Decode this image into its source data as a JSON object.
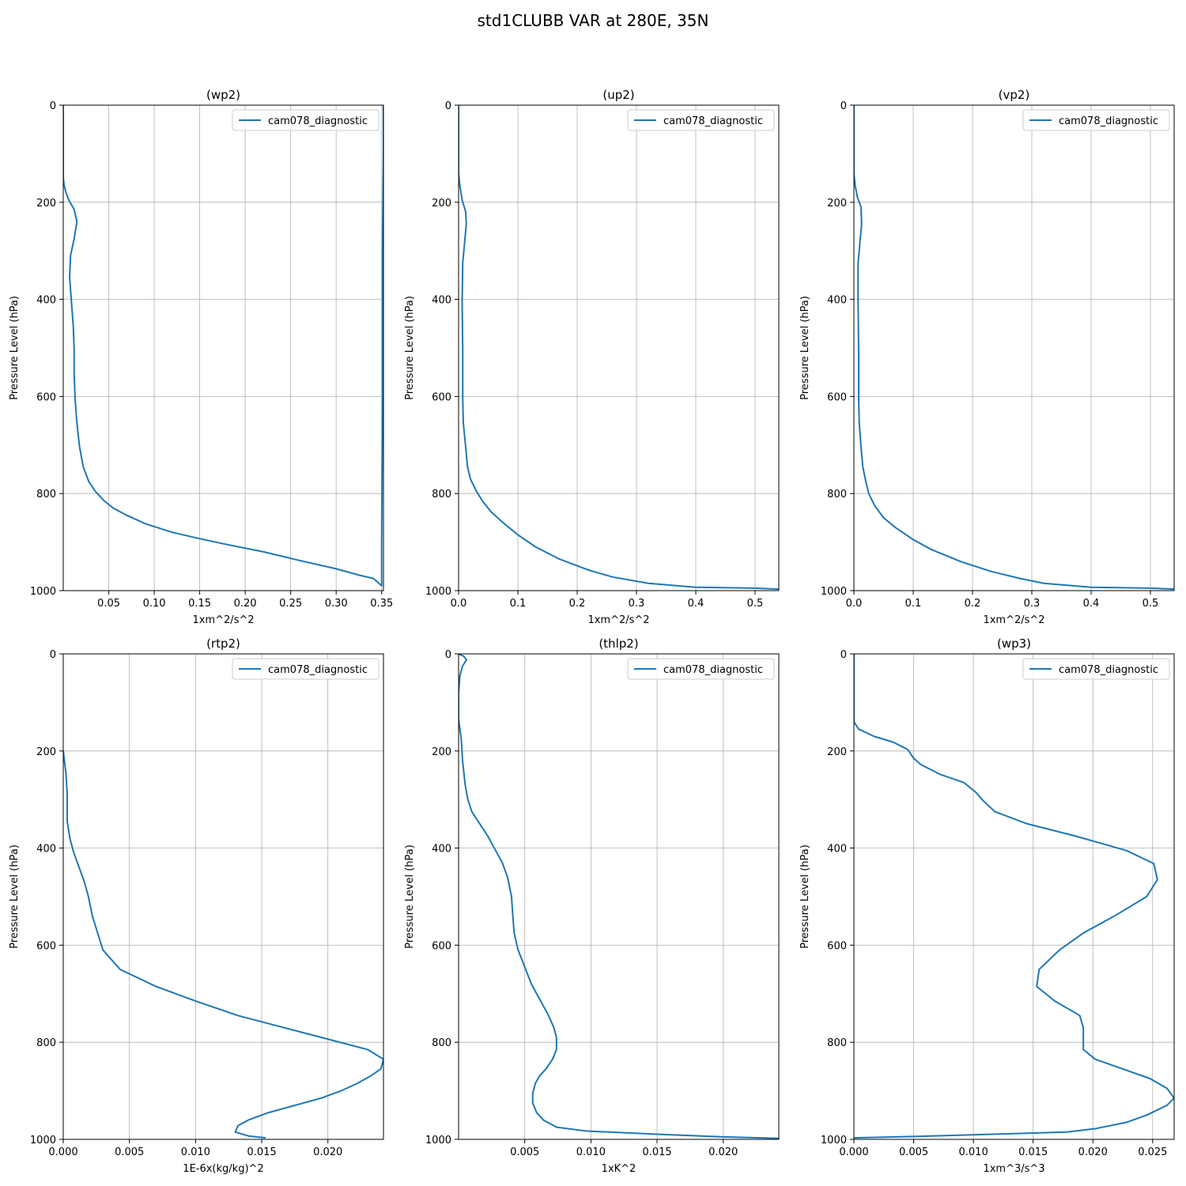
{
  "figure": {
    "suptitle": "std1CLUBB VAR at 280E, 35N"
  },
  "chart_data": [
    {
      "type": "line",
      "title": "(wp2)",
      "xlabel": "1xm^2/s^2",
      "ylabel": "Pressure Level (hPa)",
      "xlim": [
        0,
        0.352
      ],
      "ylim": [
        1000,
        0
      ],
      "xticks": [
        0.05,
        0.1,
        0.15,
        0.2,
        0.25,
        0.3,
        0.35
      ],
      "xtick_labels": [
        "0.05",
        "0.10",
        "0.15",
        "0.20",
        "0.25",
        "0.30",
        "0.35"
      ],
      "yticks": [
        0,
        200,
        400,
        600,
        800,
        1000
      ],
      "ytick_labels": [
        "0",
        "200",
        "400",
        "600",
        "800",
        "1000"
      ],
      "grid": true,
      "legend": "top-right",
      "series": [
        {
          "name": "cam078_diagnostic",
          "color": "#1f77b4",
          "points": [
            [
              0.352,
              0
            ],
            [
              0.352,
              100
            ],
            [
              0.351,
              300
            ],
            [
              0.351,
              600
            ],
            [
              0.35,
              900
            ],
            [
              0.35,
              990
            ],
            [
              0.341,
              975
            ],
            [
              0.325,
              968
            ],
            [
              0.3,
              955
            ],
            [
              0.26,
              938
            ],
            [
              0.22,
              920
            ],
            [
              0.18,
              905
            ],
            [
              0.15,
              893
            ],
            [
              0.12,
              880
            ],
            [
              0.09,
              862
            ],
            [
              0.07,
              845
            ],
            [
              0.055,
              830
            ],
            [
              0.045,
              815
            ],
            [
              0.035,
              795
            ],
            [
              0.028,
              775
            ],
            [
              0.022,
              745
            ],
            [
              0.018,
              705
            ],
            [
              0.015,
              655
            ],
            [
              0.013,
              605
            ],
            [
              0.012,
              555
            ],
            [
              0.012,
              505
            ],
            [
              0.011,
              455
            ],
            [
              0.009,
              405
            ],
            [
              0.007,
              355
            ],
            [
              0.008,
              310
            ],
            [
              0.012,
              275
            ],
            [
              0.015,
              240
            ],
            [
              0.012,
              215
            ],
            [
              0.006,
              195
            ],
            [
              0.003,
              180
            ],
            [
              0.001,
              165
            ],
            [
              0,
              150
            ],
            [
              0,
              0
            ]
          ]
        }
      ]
    },
    {
      "type": "line",
      "title": "(up2)",
      "xlabel": "1xm^2/s^2",
      "ylabel": "Pressure Level (hPa)",
      "xlim": [
        0,
        0.54
      ],
      "ylim": [
        1000,
        0
      ],
      "xticks": [
        0.0,
        0.1,
        0.2,
        0.3,
        0.4,
        0.5
      ],
      "xtick_labels": [
        "0.0",
        "0.1",
        "0.2",
        "0.3",
        "0.4",
        "0.5"
      ],
      "yticks": [
        0,
        200,
        400,
        600,
        800,
        1000
      ],
      "ytick_labels": [
        "0",
        "200",
        "400",
        "600",
        "800",
        "1000"
      ],
      "grid": true,
      "legend": "top-right",
      "series": [
        {
          "name": "cam078_diagnostic",
          "color": "#1f77b4",
          "points": [
            [
              0,
              0
            ],
            [
              0,
              140
            ],
            [
              0.002,
              165
            ],
            [
              0.006,
              195
            ],
            [
              0.012,
              220
            ],
            [
              0.013,
              245
            ],
            [
              0.01,
              285
            ],
            [
              0.007,
              325
            ],
            [
              0.006,
              405
            ],
            [
              0.007,
              505
            ],
            [
              0.007,
              605
            ],
            [
              0.008,
              655
            ],
            [
              0.012,
              705
            ],
            [
              0.015,
              745
            ],
            [
              0.02,
              770
            ],
            [
              0.03,
              795
            ],
            [
              0.04,
              815
            ],
            [
              0.055,
              838
            ],
            [
              0.075,
              860
            ],
            [
              0.1,
              885
            ],
            [
              0.13,
              910
            ],
            [
              0.17,
              935
            ],
            [
              0.22,
              958
            ],
            [
              0.26,
              972
            ],
            [
              0.32,
              985
            ],
            [
              0.4,
              993
            ],
            [
              0.5,
              995
            ],
            [
              0.54,
              997
            ]
          ]
        }
      ]
    },
    {
      "type": "line",
      "title": "(vp2)",
      "xlabel": "1xm^2/s^2",
      "ylabel": "Pressure Level (hPa)",
      "xlim": [
        0,
        0.54
      ],
      "ylim": [
        1000,
        0
      ],
      "xticks": [
        0.0,
        0.1,
        0.2,
        0.3,
        0.4,
        0.5
      ],
      "xtick_labels": [
        "0.0",
        "0.1",
        "0.2",
        "0.3",
        "0.4",
        "0.5"
      ],
      "yticks": [
        0,
        200,
        400,
        600,
        800,
        1000
      ],
      "ytick_labels": [
        "0",
        "200",
        "400",
        "600",
        "800",
        "1000"
      ],
      "grid": true,
      "legend": "top-right",
      "series": [
        {
          "name": "cam078_diagnostic",
          "color": "#1f77b4",
          "points": [
            [
              0,
              0
            ],
            [
              0,
              140
            ],
            [
              0.002,
              165
            ],
            [
              0.006,
              190
            ],
            [
              0.012,
              210
            ],
            [
              0.013,
              245
            ],
            [
              0.01,
              285
            ],
            [
              0.007,
              325
            ],
            [
              0.007,
              405
            ],
            [
              0.008,
              505
            ],
            [
              0.008,
              605
            ],
            [
              0.009,
              655
            ],
            [
              0.012,
              705
            ],
            [
              0.015,
              745
            ],
            [
              0.02,
              775
            ],
            [
              0.025,
              800
            ],
            [
              0.035,
              825
            ],
            [
              0.05,
              850
            ],
            [
              0.07,
              870
            ],
            [
              0.1,
              895
            ],
            [
              0.13,
              915
            ],
            [
              0.18,
              940
            ],
            [
              0.23,
              960
            ],
            [
              0.28,
              975
            ],
            [
              0.32,
              985
            ],
            [
              0.4,
              993
            ],
            [
              0.5,
              995
            ],
            [
              0.54,
              997
            ]
          ]
        }
      ]
    },
    {
      "type": "line",
      "title": "(rtp2)",
      "xlabel": "1E-6x(kg/kg)^2",
      "ylabel": "Pressure Level (hPa)",
      "xlim": [
        0,
        0.0242
      ],
      "ylim": [
        1000,
        0
      ],
      "xticks": [
        0.0,
        0.005,
        0.01,
        0.015,
        0.02
      ],
      "xtick_labels": [
        "0.000",
        "0.005",
        "0.010",
        "0.015",
        "0.020"
      ],
      "yticks": [
        0,
        200,
        400,
        600,
        800,
        1000
      ],
      "ytick_labels": [
        "0",
        "200",
        "400",
        "600",
        "800",
        "1000"
      ],
      "grid": true,
      "legend": "top-right",
      "series": [
        {
          "name": "cam078_diagnostic",
          "color": "#1f77b4",
          "points": [
            [
              0,
              200
            ],
            [
              0.0002,
              245
            ],
            [
              0.0003,
              290
            ],
            [
              0.0003,
              345
            ],
            [
              0.0005,
              380
            ],
            [
              0.0008,
              410
            ],
            [
              0.0012,
              440
            ],
            [
              0.0016,
              470
            ],
            [
              0.0019,
              500
            ],
            [
              0.0022,
              540
            ],
            [
              0.0026,
              575
            ],
            [
              0.003,
              610
            ],
            [
              0.0043,
              650
            ],
            [
              0.007,
              685
            ],
            [
              0.01,
              715
            ],
            [
              0.0132,
              745
            ],
            [
              0.0167,
              770
            ],
            [
              0.0202,
              795
            ],
            [
              0.023,
              815
            ],
            [
              0.0242,
              835
            ],
            [
              0.024,
              855
            ],
            [
              0.0232,
              870
            ],
            [
              0.0222,
              885
            ],
            [
              0.021,
              900
            ],
            [
              0.0195,
              915
            ],
            [
              0.0175,
              930
            ],
            [
              0.0155,
              945
            ],
            [
              0.014,
              960
            ],
            [
              0.0132,
              972
            ],
            [
              0.013,
              985
            ],
            [
              0.014,
              993
            ],
            [
              0.0153,
              997
            ]
          ]
        }
      ]
    },
    {
      "type": "line",
      "title": "(thlp2)",
      "xlabel": "1xK^2",
      "ylabel": "Pressure Level (hPa)",
      "xlim": [
        0,
        0.0242
      ],
      "ylim": [
        1000,
        0
      ],
      "xticks": [
        0.005,
        0.01,
        0.015,
        0.02
      ],
      "xtick_labels": [
        "0.005",
        "0.010",
        "0.015",
        "0.020"
      ],
      "yticks": [
        0,
        200,
        400,
        600,
        800,
        1000
      ],
      "ytick_labels": [
        "0",
        "200",
        "400",
        "600",
        "800",
        "1000"
      ],
      "grid": true,
      "legend": "top-right",
      "series": [
        {
          "name": "cam078_diagnostic",
          "color": "#1f77b4",
          "points": [
            [
              0,
              0
            ],
            [
              0.0004,
              5
            ],
            [
              0.0006,
              12
            ],
            [
              0.0003,
              25
            ],
            [
              0.0001,
              45
            ],
            [
              0,
              80
            ],
            [
              0,
              135
            ],
            [
              0.0002,
              175
            ],
            [
              0.0003,
              220
            ],
            [
              0.0005,
              270
            ],
            [
              0.0007,
              300
            ],
            [
              0.001,
              325
            ],
            [
              0.0016,
              350
            ],
            [
              0.0022,
              375
            ],
            [
              0.0028,
              405
            ],
            [
              0.0033,
              430
            ],
            [
              0.0037,
              460
            ],
            [
              0.004,
              500
            ],
            [
              0.0041,
              540
            ],
            [
              0.0042,
              575
            ],
            [
              0.0045,
              610
            ],
            [
              0.005,
              645
            ],
            [
              0.0055,
              680
            ],
            [
              0.0062,
              715
            ],
            [
              0.0068,
              745
            ],
            [
              0.0072,
              770
            ],
            [
              0.0074,
              790
            ],
            [
              0.0074,
              815
            ],
            [
              0.0071,
              835
            ],
            [
              0.0066,
              855
            ],
            [
              0.0061,
              870
            ],
            [
              0.0058,
              885
            ],
            [
              0.0056,
              905
            ],
            [
              0.0056,
              925
            ],
            [
              0.0059,
              945
            ],
            [
              0.0064,
              960
            ],
            [
              0.0074,
              975
            ],
            [
              0.0097,
              983
            ],
            [
              0.0155,
              990
            ],
            [
              0.02,
              995
            ],
            [
              0.0242,
              998
            ]
          ]
        }
      ]
    },
    {
      "type": "line",
      "title": "(wp3)",
      "xlabel": "1xm^3/s^3",
      "ylabel": "Pressure Level (hPa)",
      "xlim": [
        0,
        0.0268
      ],
      "ylim": [
        1000,
        0
      ],
      "xticks": [
        0.0,
        0.005,
        0.01,
        0.015,
        0.02,
        0.025
      ],
      "xtick_labels": [
        "0.000",
        "0.005",
        "0.010",
        "0.015",
        "0.020",
        "0.025"
      ],
      "yticks": [
        0,
        200,
        400,
        600,
        800,
        1000
      ],
      "ytick_labels": [
        "0",
        "200",
        "400",
        "600",
        "800",
        "1000"
      ],
      "grid": true,
      "legend": "top-right",
      "series": [
        {
          "name": "cam078_diagnostic",
          "color": "#1f77b4",
          "points": [
            [
              0,
              0
            ],
            [
              0,
              140
            ],
            [
              0.0004,
              155
            ],
            [
              0.0017,
              170
            ],
            [
              0.0033,
              182
            ],
            [
              0.0045,
              197
            ],
            [
              0.005,
              215
            ],
            [
              0.0056,
              228
            ],
            [
              0.0072,
              248
            ],
            [
              0.0092,
              265
            ],
            [
              0.0102,
              285
            ],
            [
              0.0108,
              302
            ],
            [
              0.0118,
              325
            ],
            [
              0.0145,
              350
            ],
            [
              0.0185,
              375
            ],
            [
              0.0228,
              405
            ],
            [
              0.0251,
              432
            ],
            [
              0.0254,
              465
            ],
            [
              0.0245,
              500
            ],
            [
              0.0218,
              540
            ],
            [
              0.0192,
              575
            ],
            [
              0.0172,
              610
            ],
            [
              0.0155,
              650
            ],
            [
              0.0153,
              685
            ],
            [
              0.0168,
              715
            ],
            [
              0.0189,
              745
            ],
            [
              0.0192,
              770
            ],
            [
              0.0192,
              815
            ],
            [
              0.0202,
              835
            ],
            [
              0.0225,
              855
            ],
            [
              0.0248,
              875
            ],
            [
              0.0262,
              895
            ],
            [
              0.0268,
              915
            ],
            [
              0.0262,
              930
            ],
            [
              0.0245,
              950
            ],
            [
              0.0228,
              965
            ],
            [
              0.0202,
              978
            ],
            [
              0.0178,
              985
            ],
            [
              0.0108,
              990
            ],
            [
              0.005,
              994
            ],
            [
              0,
              997
            ]
          ]
        }
      ]
    }
  ]
}
